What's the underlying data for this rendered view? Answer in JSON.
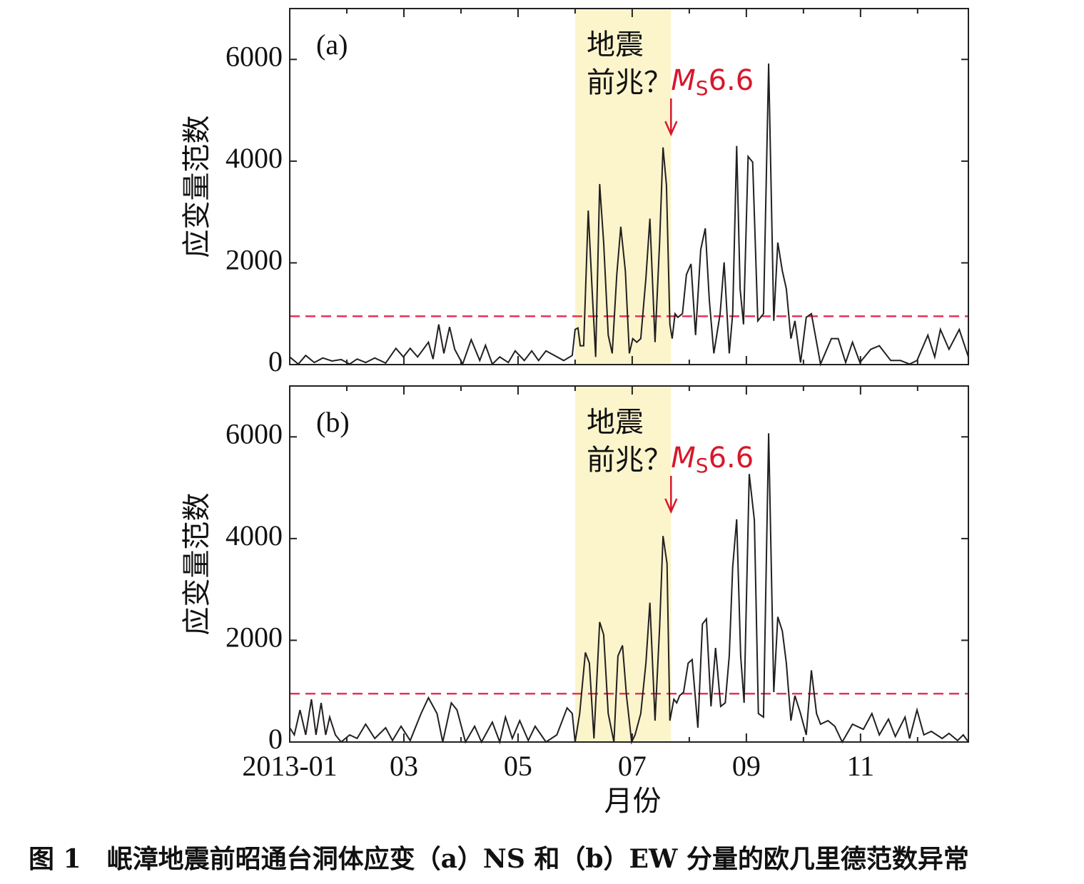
{
  "caption": "图 1　岷漳地震前昭通台洞体应变（a）NS 和（b）EW 分量的欧几里德范数异常",
  "chart_data": [
    {
      "type": "line",
      "panel_label": "(a)",
      "ylabel": "应变量范数",
      "annotation": [
        "地震",
        "前兆？"
      ],
      "event": {
        "symbol": "M",
        "subscript": "S",
        "text": "6.6",
        "color": "#d7182a"
      },
      "shade": [
        6,
        7.68
      ],
      "shade_color": "#fcf5cc",
      "threshold": 950,
      "threshold_color": "#e5335a",
      "xlim": [
        1,
        12.89
      ],
      "xticks": [
        1,
        3,
        5,
        7,
        9,
        11
      ],
      "xminorticks": [
        2,
        4,
        6,
        8,
        10,
        12
      ],
      "ylim": [
        0,
        7000
      ],
      "yticks": [
        0,
        2000,
        4000,
        6000
      ],
      "x": [
        1,
        1.15,
        1.28,
        1.43,
        1.58,
        1.74,
        1.9,
        2.05,
        2.18,
        2.33,
        2.49,
        2.68,
        2.86,
        2.99,
        3.11,
        3.24,
        3.43,
        3.51,
        3.61,
        3.7,
        3.8,
        3.89,
        4.03,
        4.18,
        4.33,
        4.43,
        4.55,
        4.68,
        4.83,
        4.95,
        5.11,
        5.24,
        5.36,
        5.49,
        5.8,
        5.95,
        6,
        6.05,
        6.09,
        6.15,
        6.23,
        6.3,
        6.36,
        6.43,
        6.5,
        6.58,
        6.65,
        6.73,
        6.8,
        6.88,
        6.95,
        7.01,
        7.08,
        7.15,
        7.24,
        7.31,
        7.4,
        7.48,
        7.54,
        7.6,
        7.66,
        7.7,
        7.75,
        7.8,
        7.88,
        7.95,
        8.03,
        8.11,
        8.2,
        8.28,
        8.35,
        8.43,
        8.54,
        8.61,
        8.7,
        8.76,
        8.83,
        8.89,
        8.95,
        9.03,
        9.11,
        9.2,
        9.3,
        9.39,
        9.48,
        9.55,
        9.63,
        9.7,
        9.78,
        9.85,
        9.95,
        10.05,
        10.14,
        10.3,
        10.49,
        10.61,
        10.74,
        10.86,
        10.99,
        11.18,
        11.33,
        11.53,
        11.7,
        11.86,
        11.99,
        12.18,
        12.3,
        12.4,
        12.55,
        12.73,
        12.89
      ],
      "series": [
        {
          "color": "#231f20",
          "values": [
            150,
            10,
            180,
            40,
            130,
            70,
            100,
            10,
            110,
            40,
            130,
            30,
            320,
            150,
            320,
            150,
            440,
            110,
            790,
            220,
            740,
            300,
            10,
            490,
            80,
            380,
            10,
            150,
            40,
            270,
            80,
            270,
            80,
            270,
            80,
            180,
            690,
            720,
            370,
            370,
            3030,
            1420,
            150,
            3550,
            2400,
            580,
            220,
            1770,
            2710,
            1840,
            220,
            510,
            440,
            510,
            1700,
            2870,
            440,
            2400,
            4270,
            3530,
            790,
            510,
            1000,
            930,
            1000,
            1770,
            1980,
            580,
            2260,
            2680,
            1280,
            220,
            1000,
            2010,
            220,
            1000,
            4300,
            1490,
            790,
            4090,
            3980,
            860,
            1000,
            5920,
            860,
            2400,
            1840,
            1490,
            510,
            860,
            40,
            930,
            1000,
            10,
            510,
            510,
            40,
            440,
            40,
            300,
            370,
            80,
            80,
            10,
            80,
            580,
            150,
            690,
            300,
            690,
            150
          ]
        }
      ]
    },
    {
      "type": "line",
      "panel_label": "(b)",
      "ylabel": "应变量范数",
      "xlabel": "月份",
      "annotation": [
        "地震",
        "前兆？"
      ],
      "event": {
        "symbol": "M",
        "subscript": "S",
        "text": "6.6",
        "color": "#d7182a"
      },
      "shade": [
        6,
        7.68
      ],
      "shade_color": "#fcf5cc",
      "threshold": 950,
      "threshold_color": "#e5335a",
      "xlim": [
        1,
        12.89
      ],
      "xticks": [
        {
          "value": 1,
          "label": "2013-01"
        },
        {
          "value": 3,
          "label": "03"
        },
        {
          "value": 5,
          "label": "05"
        },
        {
          "value": 7,
          "label": "07"
        },
        {
          "value": 9,
          "label": "09"
        },
        {
          "value": 11,
          "label": "11"
        }
      ],
      "xminorticks": [
        2,
        4,
        6,
        8,
        10,
        12
      ],
      "ylim": [
        0,
        7000
      ],
      "yticks": [
        0,
        2000,
        4000,
        6000
      ],
      "x": [
        1,
        1.08,
        1.18,
        1.28,
        1.38,
        1.46,
        1.55,
        1.63,
        1.7,
        1.8,
        1.9,
        2.05,
        2.18,
        2.33,
        2.49,
        2.68,
        2.8,
        2.95,
        3.11,
        3.3,
        3.43,
        3.58,
        3.68,
        3.83,
        3.93,
        4.08,
        4.24,
        4.36,
        4.55,
        4.68,
        4.78,
        4.9,
        5.03,
        5.18,
        5.3,
        5.49,
        5.68,
        5.86,
        5.95,
        6,
        6.08,
        6.18,
        6.25,
        6.33,
        6.43,
        6.5,
        6.58,
        6.68,
        6.75,
        6.83,
        6.9,
        6.99,
        7.05,
        7.15,
        7.24,
        7.31,
        7.4,
        7.48,
        7.54,
        7.61,
        7.66,
        7.73,
        7.78,
        7.83,
        7.9,
        7.98,
        8.05,
        8.15,
        8.23,
        8.3,
        8.38,
        8.46,
        8.55,
        8.63,
        8.7,
        8.76,
        8.83,
        8.9,
        8.96,
        9.05,
        9.14,
        9.21,
        9.3,
        9.39,
        9.48,
        9.55,
        9.63,
        9.7,
        9.78,
        9.85,
        9.95,
        10.05,
        10.14,
        10.23,
        10.3,
        10.43,
        10.55,
        10.68,
        10.86,
        11.05,
        11.2,
        11.33,
        11.49,
        11.61,
        11.78,
        11.86,
        11.99,
        12.11,
        12.24,
        12.43,
        12.55,
        12.7,
        12.8,
        12.89
      ],
      "series": [
        {
          "color": "#231f20",
          "values": [
            280,
            140,
            630,
            140,
            840,
            140,
            770,
            140,
            490,
            140,
            0,
            140,
            70,
            350,
            70,
            280,
            30,
            310,
            30,
            560,
            870,
            560,
            0,
            770,
            630,
            0,
            310,
            0,
            390,
            0,
            490,
            70,
            420,
            30,
            310,
            0,
            140,
            670,
            560,
            0,
            560,
            1760,
            1550,
            70,
            2360,
            2110,
            560,
            0,
            1690,
            1900,
            910,
            0,
            140,
            560,
            1550,
            2740,
            420,
            2250,
            4050,
            3510,
            420,
            840,
            770,
            910,
            980,
            1550,
            1620,
            280,
            2320,
            2420,
            700,
            1850,
            700,
            770,
            1690,
            3440,
            4380,
            1690,
            770,
            5270,
            4360,
            560,
            490,
            6070,
            980,
            2460,
            2180,
            1550,
            420,
            910,
            560,
            140,
            1410,
            560,
            350,
            420,
            310,
            0,
            350,
            250,
            560,
            140,
            450,
            110,
            490,
            70,
            630,
            140,
            210,
            70,
            170,
            30,
            140,
            0
          ]
        }
      ]
    }
  ]
}
